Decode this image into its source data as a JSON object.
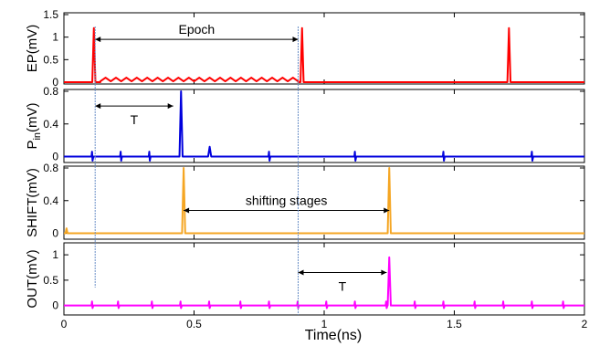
{
  "chart_data": {
    "type": "line",
    "xlabel": "Time(ns)",
    "xlim": [
      0,
      2
    ],
    "xticks": [
      0,
      0.5,
      1,
      1.5,
      2
    ],
    "xtick_labels": [
      "0",
      "0.5",
      "1",
      "1.5",
      "2"
    ],
    "guide_times": [
      0.12,
      0.9
    ],
    "panels": [
      {
        "id": "ep",
        "ylabel": "EP(mV)",
        "ylim": [
          0,
          1.5
        ],
        "yticks": [
          0,
          0.5,
          1,
          1.5
        ],
        "ytick_labels": [
          "0",
          "0.5",
          "1",
          "1.5"
        ],
        "color": "#ff0000",
        "spikes": [
          {
            "x": 0.115,
            "y": 1.2
          },
          {
            "x": 0.915,
            "y": 1.2
          },
          {
            "x": 1.71,
            "y": 1.2
          }
        ],
        "ripple": {
          "from": 0.14,
          "to": 0.9,
          "y": 0.1
        },
        "annotations": [
          {
            "text": "Epoch",
            "x_from": 0.12,
            "x_to": 0.9,
            "y": 0.95
          }
        ]
      },
      {
        "id": "pin",
        "ylabel": "P",
        "ylabel_sub": "in",
        "ylabel_unit": "(mV)",
        "ylim": [
          -0.05,
          0.8
        ],
        "yticks": [
          0,
          0.4,
          0.8
        ],
        "ytick_labels": [
          "0",
          "0.4",
          "0.8"
        ],
        "color": "#0000dd",
        "spikes": [
          {
            "x": 0.45,
            "y": 0.8
          },
          {
            "x": 0.56,
            "y": 0.12
          }
        ],
        "blips": [
          0.11,
          0.22,
          0.33,
          0.79,
          1.12,
          1.46,
          1.8
        ],
        "annotations": [
          {
            "text": "T",
            "x_from": 0.12,
            "x_to": 0.42,
            "y": 0.62
          }
        ]
      },
      {
        "id": "shift",
        "ylabel": "SHIFT(mV)",
        "ylim": [
          -0.05,
          0.8
        ],
        "yticks": [
          0,
          0.4,
          0.8
        ],
        "ytick_labels": [
          "0",
          "0.4",
          "0.8"
        ],
        "color": "#f5a623",
        "spikes": [
          {
            "x": 0.46,
            "y": 0.8
          },
          {
            "x": 1.25,
            "y": 0.8
          }
        ],
        "small_start": {
          "x": 0.01,
          "y": 0.06
        },
        "annotations": [
          {
            "text": "shifting stages",
            "x_from": 0.46,
            "x_to": 1.25,
            "y": 0.28
          }
        ]
      },
      {
        "id": "out",
        "ylabel": "OUT(mV)",
        "ylim": [
          -0.15,
          1.2
        ],
        "yticks": [
          0,
          0.5,
          1
        ],
        "ytick_labels": [
          "0",
          "0.5",
          "1"
        ],
        "color": "#ff00ff",
        "spikes": [
          {
            "x": 1.25,
            "y": 0.95
          }
        ],
        "blips": [
          0.11,
          0.21,
          0.34,
          0.45,
          0.56,
          0.68,
          0.79,
          0.9,
          1.01,
          1.12,
          1.24,
          1.35,
          1.46,
          1.58,
          1.69,
          1.8,
          1.92
        ],
        "annotations": [
          {
            "text": "T",
            "x_from": 0.9,
            "x_to": 1.24,
            "y": 0.65
          }
        ]
      }
    ]
  }
}
